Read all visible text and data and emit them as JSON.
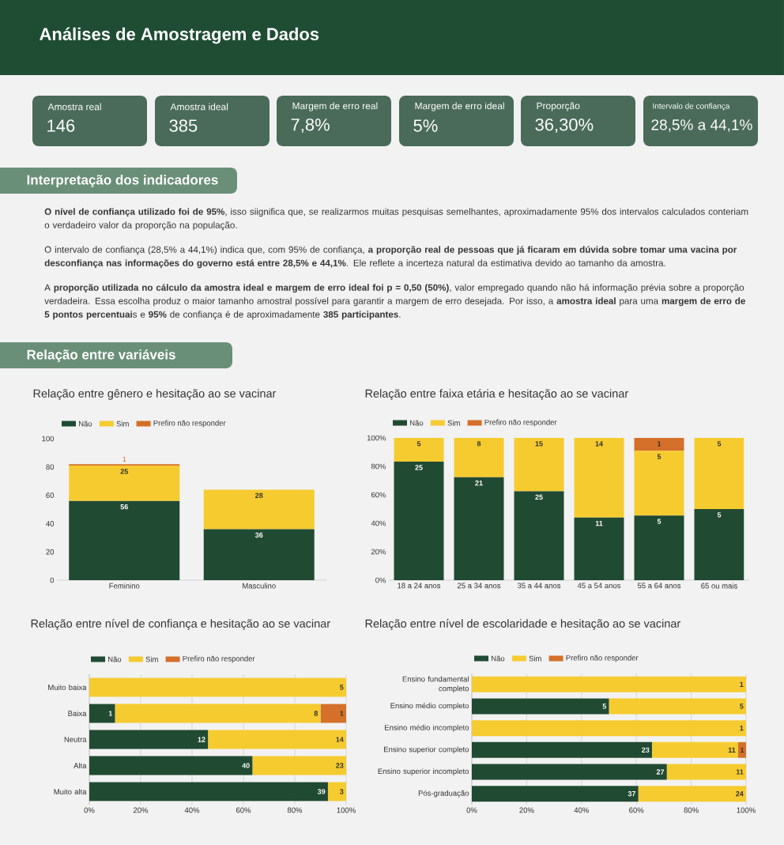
{
  "chart_data": [
    {
      "type": "other",
      "title": "Análises de Amostragem e Dados",
      "annotations": [
        "Amostra real",
        "146",
        "Amostra ideal",
        "385",
        "Margem de erro real",
        "7,8%",
        "Margem de erro ideal",
        "5%",
        "Proporção",
        "36,30%",
        "Intervalo de confiança",
        "28,5% a 44,1%",
        "Interpretação dos indicadores",
        "**O nível de confiança utilizado foi de 95%**, isso siignifica que, se realizarmos muitas pesquisas semelhantes, aproximadamente 95% dos intervalos calculados conteriam o verdadeiro valor da proporção na população.",
        "O intervalo de confiança (28,5% a 44,1%) indica que, com 95% de confiança, **a proporção real de pessoas que já ficaram em dúvida sobre tomar uma vacina por desconfiança nas informações do governo está entre 28,5% e 44,1%**. Ele reflete a incerteza natural da estimativa devido ao tamanho da amostra.",
        "A **proporção utilizada no cálculo da amostra ideal e margem de erro ideal foi p = 0,50 (50%)**, valor empregado quando não há informação prévia sobre a proporção verdadeira. Essa escolha produz o maior tamanho amostral possível para garantir a margem de erro desejada. Por isso, a **amostra ideal** para uma **margem de erro de 5 pontos percentuai**s e **95%** de confiança é de aproximadamente **385 participantes**.",
        "Relação entre variáveis"
      ]
    },
    {
      "type": "bar",
      "stacked": true,
      "title": "Relação entre gênero e hesitação ao se vacinar",
      "categories": [
        "Feminino",
        "Masculino"
      ],
      "ylim": [
        0,
        100
      ],
      "yticks": [
        0,
        20,
        40,
        60,
        80,
        100
      ],
      "legend": "top",
      "series": [
        {
          "name": "Não",
          "color": "#214a33",
          "values": [
            56,
            36
          ],
          "value_labels": [
            "56",
            "36"
          ]
        },
        {
          "name": "Sim",
          "color": "#f5cb30",
          "values": [
            25,
            28
          ],
          "value_labels": [
            "25",
            "28"
          ]
        },
        {
          "name": "Prefiro não responder",
          "color": "#d4702a",
          "values": [
            1,
            0
          ],
          "value_labels": [
            "1",
            null
          ]
        }
      ]
    },
    {
      "type": "bar",
      "stacked": true,
      "title": "Relação entre faixa etária e hesitação ao se vacinar",
      "categories": [
        "18 a 24 anos",
        "25 a 34 anos",
        "35 a 44 anos",
        "45 a 54 anos",
        "55 a 64 anos",
        "65 ou mais"
      ],
      "ylim": [
        0,
        100
      ],
      "yticks": [
        {
          "value": 0,
          "label": "0%"
        },
        {
          "value": 20,
          "label": "20%"
        },
        {
          "value": 40,
          "label": "40%"
        },
        {
          "value": 60,
          "label": "60%"
        },
        {
          "value": 80,
          "label": "80%"
        },
        {
          "value": 100,
          "label": "100%"
        }
      ],
      "legend": "top",
      "series": [
        {
          "name": "Não",
          "color": "#214a33",
          "values": [
            83.3,
            72.4,
            62.5,
            44,
            45.4,
            50
          ]
        },
        {
          "name": "Sim",
          "color": "#f5cb30",
          "values": [
            16.7,
            27.6,
            37.5,
            56,
            45.5,
            50
          ]
        },
        {
          "name": "Prefiro não responder",
          "color": "#d4702a",
          "values": [
            0,
            0,
            0,
            0,
            9.1,
            0
          ]
        }
      ],
      "annotations": [
        {
          "text": "25",
          "x": "18 a 24 anos",
          "y": 83.3
        },
        {
          "text": "5",
          "x": "18 a 24 anos",
          "y": 100
        },
        {
          "text": "21",
          "x": "25 a 34 anos",
          "y": 72.4
        },
        {
          "text": "8",
          "x": "25 a 34 anos",
          "y": 100
        },
        {
          "text": "25",
          "x": "35 a 44 anos",
          "y": 62.5
        },
        {
          "text": "15",
          "x": "35 a 44 anos",
          "y": 100
        },
        {
          "text": "11",
          "x": "45 a 54 anos",
          "y": 44
        },
        {
          "text": "14",
          "x": "45 a 54 anos",
          "y": 100
        },
        {
          "text": "5",
          "x": "55 a 64 anos",
          "y": 45.4
        },
        {
          "text": "5",
          "x": "55 a 64 anos",
          "y": 90.9
        },
        {
          "text": "1",
          "x": "55 a 64 anos",
          "y": 100
        },
        {
          "text": "5",
          "x": "65 ou mais",
          "y": 50
        },
        {
          "text": "5",
          "x": "65 ou mais",
          "y": 100
        }
      ]
    },
    {
      "type": "bar",
      "stacked": true,
      "orientation": "horizontal",
      "grid": "x",
      "title": "Relação entre nível de confiança e hesitação ao se vacinar",
      "categories": [
        "Muito baixa",
        "Baixa",
        "Neutra",
        "Alta",
        "Muito alta"
      ],
      "xlim": [
        0,
        100
      ],
      "xticks": [
        {
          "value": 0,
          "label": "0%"
        },
        {
          "value": 20,
          "label": "20%"
        },
        {
          "value": 40,
          "label": "40%"
        },
        {
          "value": 60,
          "label": "60%"
        },
        {
          "value": 80,
          "label": "80%"
        },
        {
          "value": 100,
          "label": "100%"
        }
      ],
      "legend": "top",
      "series": [
        {
          "name": "Não",
          "color": "#214a33",
          "values": [
            0,
            10,
            46.2,
            63.5,
            92.9
          ]
        },
        {
          "name": "Sim",
          "color": "#f5cb30",
          "values": [
            100,
            80,
            53.8,
            36.5,
            7.1
          ]
        },
        {
          "name": "Prefiro não responder",
          "color": "#d4702a",
          "values": [
            0,
            10,
            0,
            0,
            0
          ]
        }
      ],
      "annotations": [
        {
          "text": "5",
          "x": 100,
          "y": "Muito baixa"
        },
        {
          "text": "1",
          "x": 10,
          "y": "Baixa"
        },
        {
          "text": "8",
          "x": 90,
          "y": "Baixa"
        },
        {
          "text": "1",
          "x": 100,
          "y": "Baixa"
        },
        {
          "text": "12",
          "x": 46.2,
          "y": "Neutra"
        },
        {
          "text": "14",
          "x": 100,
          "y": "Neutra"
        },
        {
          "text": "40",
          "x": 63.5,
          "y": "Alta"
        },
        {
          "text": "23",
          "x": 100,
          "y": "Alta"
        },
        {
          "text": "39",
          "x": 92.9,
          "y": "Muito alta"
        },
        {
          "text": "3",
          "x": 100,
          "y": "Muito alta"
        }
      ]
    },
    {
      "type": "bar",
      "stacked": true,
      "orientation": "horizontal",
      "grid": "x",
      "title": "Relação entre nível de escolaridade e hesitação ao se vacinar",
      "categories": [
        "Ensino fundamental completo",
        "Ensino médio completo",
        "Ensino médio incompleto",
        "Ensino superior completo",
        "Ensino superior incompleto",
        "Pós-graduação"
      ],
      "xlim": [
        0,
        100
      ],
      "xticks": [
        {
          "value": 0,
          "label": "0%"
        },
        {
          "value": 20,
          "label": "20%"
        },
        {
          "value": 40,
          "label": "40%"
        },
        {
          "value": 60,
          "label": "60%"
        },
        {
          "value": 80,
          "label": "80%"
        },
        {
          "value": 100,
          "label": "100%"
        }
      ],
      "legend": "top",
      "series": [
        {
          "name": "Não",
          "color": "#214a33",
          "values": [
            0,
            50,
            0,
            65.7,
            71.1,
            60.7
          ]
        },
        {
          "name": "Sim",
          "color": "#f5cb30",
          "values": [
            100,
            50,
            100,
            31.4,
            28.9,
            39.3
          ]
        },
        {
          "name": "Prefiro não responder",
          "color": "#d4702a",
          "values": [
            0,
            0,
            0,
            2.9,
            0,
            0
          ]
        }
      ],
      "annotations": [
        {
          "text": "1",
          "x": 100,
          "y": "Ensino fundamental completo"
        },
        {
          "text": "5",
          "x": 50,
          "y": "Ensino médio completo"
        },
        {
          "text": "5",
          "x": 100,
          "y": "Ensino médio completo"
        },
        {
          "text": "1",
          "x": 100,
          "y": "Ensino médio incompleto"
        },
        {
          "text": "23",
          "x": 65.7,
          "y": "Ensino superior completo"
        },
        {
          "text": "11",
          "x": 97.1,
          "y": "Ensino superior completo"
        },
        {
          "text": "1",
          "x": 100,
          "y": "Ensino superior completo"
        },
        {
          "text": "27",
          "x": 71.1,
          "y": "Ensino superior incompleto"
        },
        {
          "text": "11",
          "x": 100,
          "y": "Ensino superior incompleto"
        },
        {
          "text": "37",
          "x": 60.7,
          "y": "Pós-graduação"
        },
        {
          "text": "24",
          "x": 100,
          "y": "Pós-graduação"
        }
      ]
    }
  ]
}
